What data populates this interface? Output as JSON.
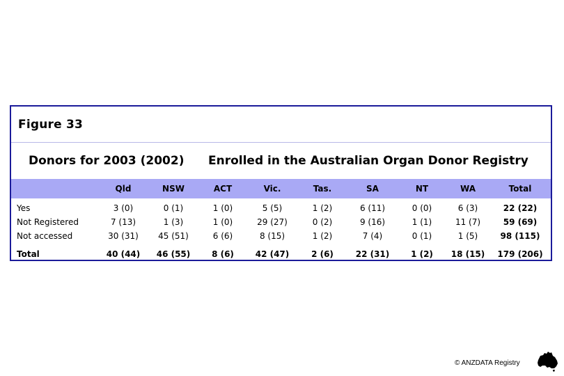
{
  "figure_label": "Figure 33",
  "heading_left": "Donors for 2003 (2002)",
  "heading_right": "Enrolled in the Australian Organ Donor Registry",
  "columns": [
    "",
    "Qld",
    "NSW",
    "ACT",
    "Vic.",
    "Tas.",
    "SA",
    "NT",
    "WA",
    "Total"
  ],
  "rows": [
    {
      "label": "Yes",
      "values": [
        "3 (0)",
        "0 (1)",
        "1 (0)",
        "5 (5)",
        "1 (2)",
        "6 (11)",
        "0 (0)",
        "6 (3)",
        "22 (22)"
      ]
    },
    {
      "label": "Not Registered",
      "values": [
        "7 (13)",
        "1 (3)",
        "1 (0)",
        "29 (27)",
        "0 (2)",
        "9 (16)",
        "1 (1)",
        "11 (7)",
        "59 (69)"
      ]
    },
    {
      "label": "Not accessed",
      "values": [
        "30 (31)",
        "45 (51)",
        "6 (6)",
        "8 (15)",
        "1 (2)",
        "7 (4)",
        "0 (1)",
        "1 (5)",
        "98 (115)"
      ]
    }
  ],
  "total_row": {
    "label": "Total",
    "values": [
      "40 (44)",
      "46 (55)",
      "8 (6)",
      "42 (47)",
      "2 (6)",
      "22 (31)",
      "1 (2)",
      "18 (15)",
      "179 (206)"
    ]
  },
  "footer_text": "© ANZDATA Registry",
  "colors": {
    "border": "#1b1b9a",
    "header_band": "#a9a9f5"
  },
  "icons": {
    "logo": "australia-map-icon"
  }
}
